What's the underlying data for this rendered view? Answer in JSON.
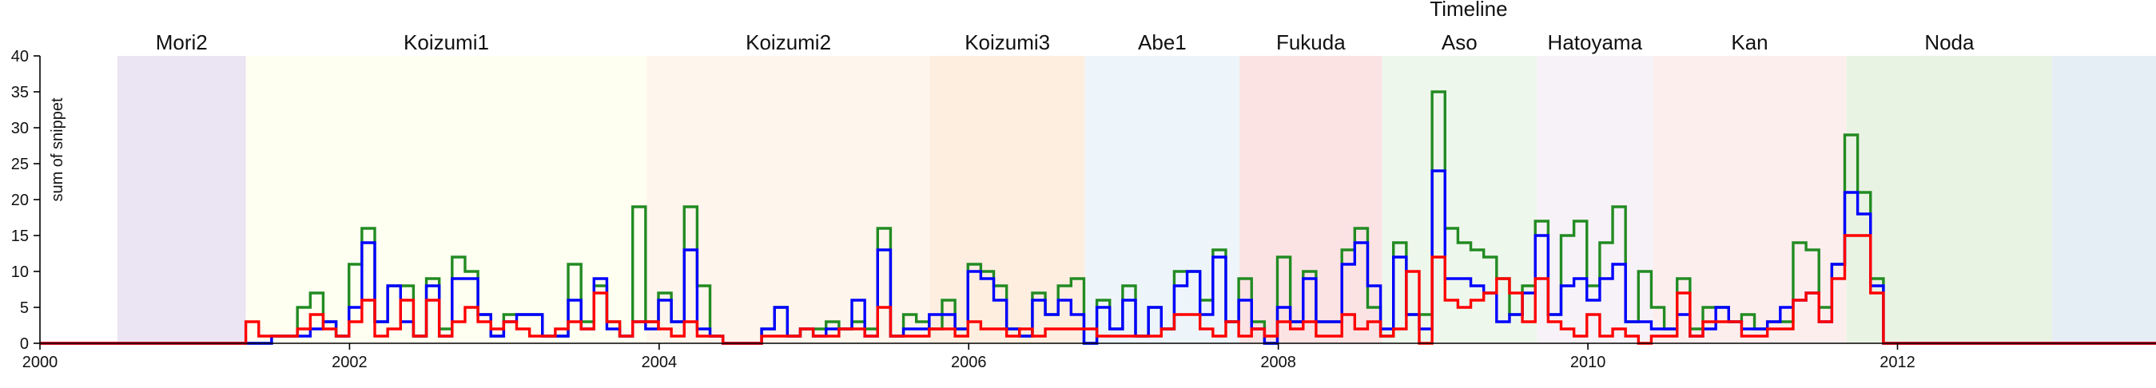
{
  "chart_data": {
    "type": "line",
    "annotation": "Timeline",
    "ylabel": "sum of snippet",
    "xlabel": "",
    "xlim": [
      2000.0,
      2013.67
    ],
    "ylim": [
      0,
      40
    ],
    "x_ticks": [
      2000,
      2002,
      2004,
      2006,
      2008,
      2010,
      2012
    ],
    "y_ticks": [
      0,
      5,
      10,
      15,
      20,
      25,
      30,
      35,
      40
    ],
    "bands": [
      {
        "label": "Mori2",
        "start": 2000.5,
        "end": 2001.33,
        "color": "#ebe4f3"
      },
      {
        "label": "Koizumi1",
        "start": 2001.33,
        "end": 2003.92,
        "color": "#fefff0"
      },
      {
        "label": "Koizumi2",
        "start": 2003.92,
        "end": 2005.75,
        "color": "#fef5ec"
      },
      {
        "label": "Koizumi3",
        "start": 2005.75,
        "end": 2006.75,
        "color": "#fdeee0"
      },
      {
        "label": "Abe1",
        "start": 2006.75,
        "end": 2007.75,
        "color": "#eef5fa"
      },
      {
        "label": "Fukuda",
        "start": 2007.75,
        "end": 2008.67,
        "color": "#fbe3e4"
      },
      {
        "label": "Aso",
        "start": 2008.67,
        "end": 2009.67,
        "color": "#eef7ec"
      },
      {
        "label": "Hatoyama",
        "start": 2009.67,
        "end": 2010.42,
        "color": "#f6f2f7"
      },
      {
        "label": "Kan",
        "start": 2010.42,
        "end": 2011.67,
        "color": "#fdeeee"
      },
      {
        "label": "Noda",
        "start": 2011.67,
        "end": 2013.0,
        "color": "#e9f3e4"
      },
      {
        "label": "",
        "start": 2013.0,
        "end": 2013.67,
        "color": "#e4eef4"
      }
    ],
    "x_start": 2001.33,
    "step": 0.0833,
    "series": [
      {
        "color": "#228b22",
        "values": [
          0,
          0,
          1,
          1,
          5,
          7,
          3,
          1,
          11,
          16,
          3,
          8,
          8,
          1,
          9,
          2,
          12,
          10,
          4,
          1,
          4,
          4,
          4,
          1,
          1,
          11,
          3,
          8,
          3,
          1,
          19,
          3,
          7,
          3,
          19,
          8,
          1,
          0,
          0,
          0,
          2,
          5,
          1,
          2,
          2,
          3,
          2,
          3,
          2,
          16,
          1,
          4,
          3,
          2,
          6,
          2,
          11,
          10,
          8,
          2,
          1,
          7,
          4,
          8,
          9,
          0,
          6,
          2,
          8,
          1,
          5,
          2,
          10,
          10,
          6,
          13,
          3,
          9,
          3,
          0,
          12,
          3,
          10,
          3,
          3,
          13,
          16,
          5,
          1,
          14,
          4,
          4,
          35,
          16,
          14,
          13,
          12,
          9,
          4,
          8,
          17,
          4,
          15,
          17,
          8,
          14,
          19,
          3,
          10,
          5,
          2,
          9,
          2,
          5,
          5,
          3,
          4,
          2,
          3,
          3,
          14,
          13,
          5,
          11,
          29,
          21,
          9
        ]
      },
      {
        "color": "#0000ff",
        "values": [
          0,
          0,
          1,
          1,
          1,
          2,
          3,
          1,
          5,
          14,
          3,
          8,
          3,
          1,
          8,
          1,
          9,
          9,
          4,
          1,
          3,
          4,
          4,
          1,
          1,
          6,
          2,
          9,
          2,
          1,
          3,
          2,
          6,
          3,
          13,
          2,
          1,
          0,
          0,
          0,
          2,
          5,
          1,
          2,
          1,
          2,
          2,
          6,
          1,
          13,
          1,
          2,
          2,
          4,
          4,
          2,
          10,
          9,
          6,
          2,
          1,
          6,
          4,
          6,
          4,
          0,
          5,
          2,
          6,
          1,
          5,
          2,
          8,
          10,
          4,
          12,
          3,
          6,
          2,
          0,
          5,
          3,
          9,
          3,
          3,
          11,
          14,
          8,
          2,
          12,
          4,
          2,
          24,
          9,
          9,
          8,
          7,
          3,
          4,
          7,
          15,
          4,
          8,
          9,
          6,
          9,
          11,
          3,
          3,
          2,
          2,
          4,
          1,
          2,
          5,
          3,
          2,
          2,
          3,
          5,
          6,
          7,
          3,
          11,
          21,
          18,
          8
        ]
      },
      {
        "color": "#ff0000",
        "values": [
          3,
          1,
          1,
          1,
          2,
          4,
          2,
          1,
          3,
          6,
          1,
          2,
          6,
          1,
          6,
          1,
          3,
          5,
          3,
          2,
          3,
          2,
          1,
          1,
          2,
          3,
          2,
          7,
          3,
          1,
          3,
          3,
          2,
          1,
          3,
          1,
          1,
          0,
          0,
          0,
          1,
          1,
          1,
          2,
          1,
          1,
          2,
          2,
          1,
          5,
          1,
          1,
          1,
          2,
          2,
          1,
          3,
          2,
          2,
          1,
          2,
          1,
          2,
          2,
          2,
          2,
          1,
          1,
          1,
          1,
          1,
          2,
          4,
          4,
          2,
          1,
          3,
          1,
          2,
          1,
          3,
          2,
          3,
          1,
          1,
          4,
          2,
          3,
          1,
          2,
          10,
          0,
          12,
          6,
          5,
          6,
          7,
          9,
          7,
          3,
          9,
          3,
          2,
          1,
          4,
          1,
          2,
          1,
          0,
          1,
          1,
          7,
          1,
          3,
          3,
          3,
          1,
          1,
          2,
          2,
          6,
          7,
          3,
          9,
          15,
          15,
          7
        ]
      }
    ]
  }
}
